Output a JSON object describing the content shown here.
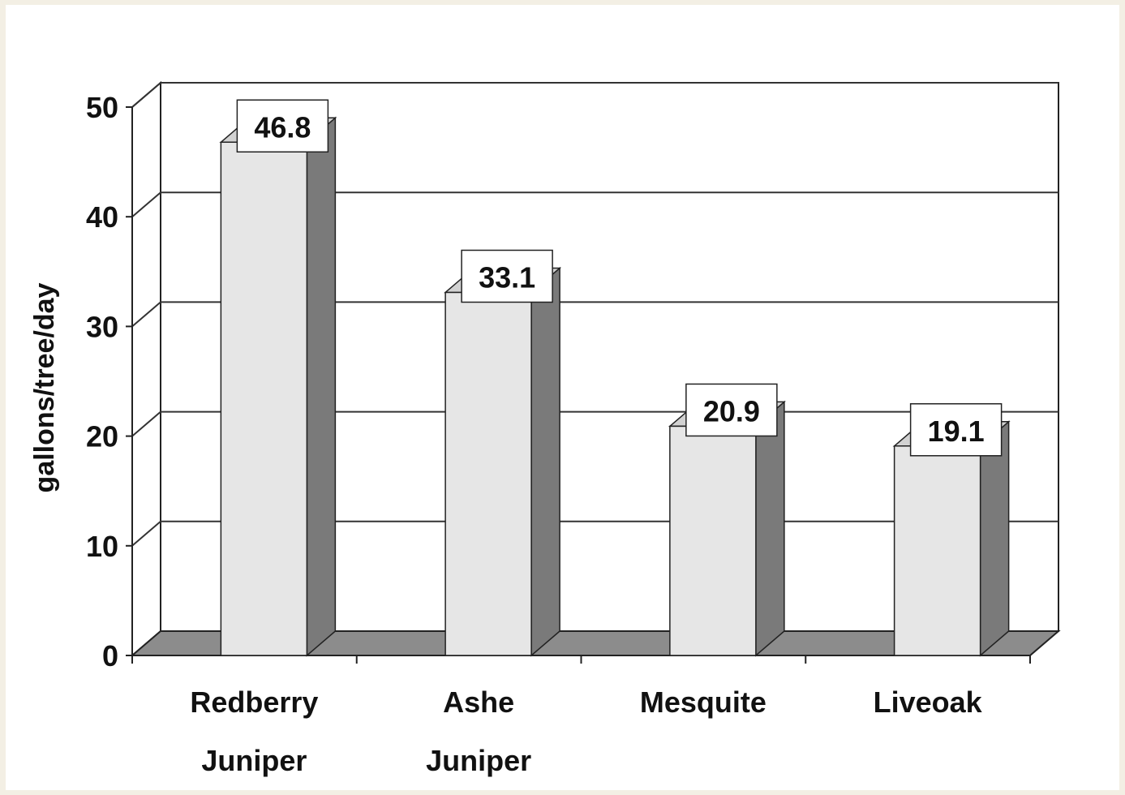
{
  "chart_data": {
    "type": "bar",
    "style": "3d-column",
    "categories": [
      [
        "Redberry",
        "Juniper"
      ],
      [
        "Ashe",
        "Juniper"
      ],
      [
        "Mesquite"
      ],
      [
        "Liveoak"
      ]
    ],
    "values": [
      46.8,
      33.1,
      20.9,
      19.1
    ],
    "value_labels": [
      "46.8",
      "33.1",
      "20.9",
      "19.1"
    ],
    "title": "",
    "xlabel": "",
    "ylabel": "gallons/tree/day",
    "ylim": [
      0,
      50
    ],
    "yticks": [
      0,
      10,
      20,
      30,
      40,
      50
    ],
    "grid": true,
    "legend": "none",
    "colors": {
      "bar_front": "#e6e6e6",
      "bar_side": "#7a7a7a",
      "bar_top": "#d2d2d2",
      "floor": "#8c8c8c",
      "grid": "#333333",
      "label_box": "#ffffff"
    }
  }
}
